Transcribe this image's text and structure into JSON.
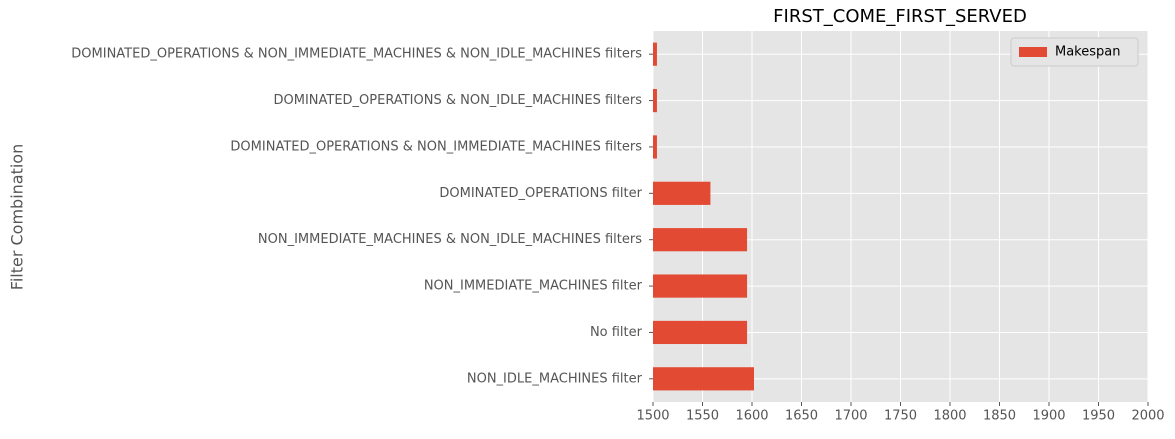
{
  "chart_data": {
    "type": "barh",
    "title": "FIRST_COME_FIRST_SERVED",
    "ylabel": "Filter Combination",
    "categories": [
      "DOMINATED_OPERATIONS & NON_IMMEDIATE_MACHINES & NON_IDLE_MACHINES filters",
      "DOMINATED_OPERATIONS & NON_IDLE_MACHINES filters",
      "DOMINATED_OPERATIONS & NON_IMMEDIATE_MACHINES filters",
      "DOMINATED_OPERATIONS filter",
      "NON_IMMEDIATE_MACHINES & NON_IDLE_MACHINES filters",
      "NON_IMMEDIATE_MACHINES filter",
      "No filter",
      "NON_IDLE_MACHINES filter"
    ],
    "series": [
      {
        "name": "Makespan",
        "color": "#e24a33",
        "values": [
          1504,
          1504,
          1504,
          1558,
          1595,
          1595,
          1595,
          1602
        ]
      }
    ],
    "xlim": [
      1500,
      2000
    ],
    "xticks": [
      1500,
      1550,
      1600,
      1650,
      1700,
      1750,
      1800,
      1850,
      1900,
      1950,
      2000
    ],
    "grid": true,
    "legend": "upper right"
  }
}
